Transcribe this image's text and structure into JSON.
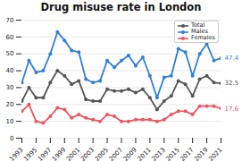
{
  "chart_data": {
    "type": "line",
    "title": "Drug misuse rate in London",
    "x": [
      1993,
      1994,
      1995,
      1996,
      1997,
      1998,
      1999,
      2000,
      2001,
      2002,
      2003,
      2004,
      2005,
      2006,
      2007,
      2008,
      2009,
      2010,
      2011,
      2012,
      2013,
      2014,
      2015,
      2016,
      2017,
      2018,
      2019,
      2020,
      2021
    ],
    "series": [
      {
        "name": "Total",
        "color": "#555555",
        "values": [
          22,
          30,
          24,
          24,
          33,
          40,
          37,
          32,
          34,
          23,
          22,
          22,
          29,
          28,
          28,
          29,
          27,
          29,
          24,
          17,
          22,
          25,
          34,
          32,
          25,
          35,
          37,
          33,
          32.5
        ],
        "value_labels": [
          null,
          null,
          null,
          null,
          null,
          null,
          null,
          null,
          null,
          null,
          null,
          null,
          null,
          null,
          null,
          null,
          null,
          null,
          null,
          null,
          null,
          null,
          null,
          null,
          null,
          null,
          null,
          null,
          "32.5"
        ]
      },
      {
        "name": "Males",
        "color": "#2f7ed8",
        "values": [
          33,
          46,
          39,
          40,
          50,
          63,
          58,
          52,
          51,
          35,
          33,
          34,
          46,
          42,
          46,
          49,
          43,
          48,
          37,
          24,
          36,
          37,
          53,
          51,
          37,
          50,
          56,
          46,
          47.4
        ],
        "value_labels": [
          null,
          null,
          null,
          null,
          null,
          null,
          null,
          null,
          null,
          null,
          null,
          null,
          null,
          null,
          null,
          null,
          null,
          null,
          null,
          null,
          null,
          null,
          null,
          null,
          null,
          null,
          null,
          null,
          "47.4"
        ]
      },
      {
        "name": "Females",
        "color": "#f0555f",
        "values": [
          16,
          20,
          10,
          9,
          13,
          18,
          17,
          12,
          14,
          12,
          11,
          10,
          14,
          13,
          10,
          10,
          11,
          11,
          11,
          10,
          11,
          14,
          16,
          16,
          14,
          19,
          19,
          19,
          17.6
        ],
        "value_labels": [
          null,
          null,
          null,
          null,
          null,
          null,
          null,
          null,
          null,
          null,
          null,
          null,
          null,
          null,
          null,
          null,
          null,
          null,
          null,
          null,
          null,
          null,
          null,
          null,
          null,
          null,
          null,
          null,
          "17.6"
        ]
      }
    ],
    "xlim": [
      1993,
      2021
    ],
    "xticks": [
      1993,
      1995,
      1997,
      1999,
      2001,
      2003,
      2005,
      2007,
      2009,
      2011,
      2013,
      2015,
      2017,
      2019,
      2021
    ],
    "ylim": [
      0,
      70
    ],
    "yticks": [
      0,
      10,
      20,
      30,
      40,
      50,
      60,
      70
    ],
    "grid": true,
    "legend": "top-right",
    "marker": "circle"
  }
}
